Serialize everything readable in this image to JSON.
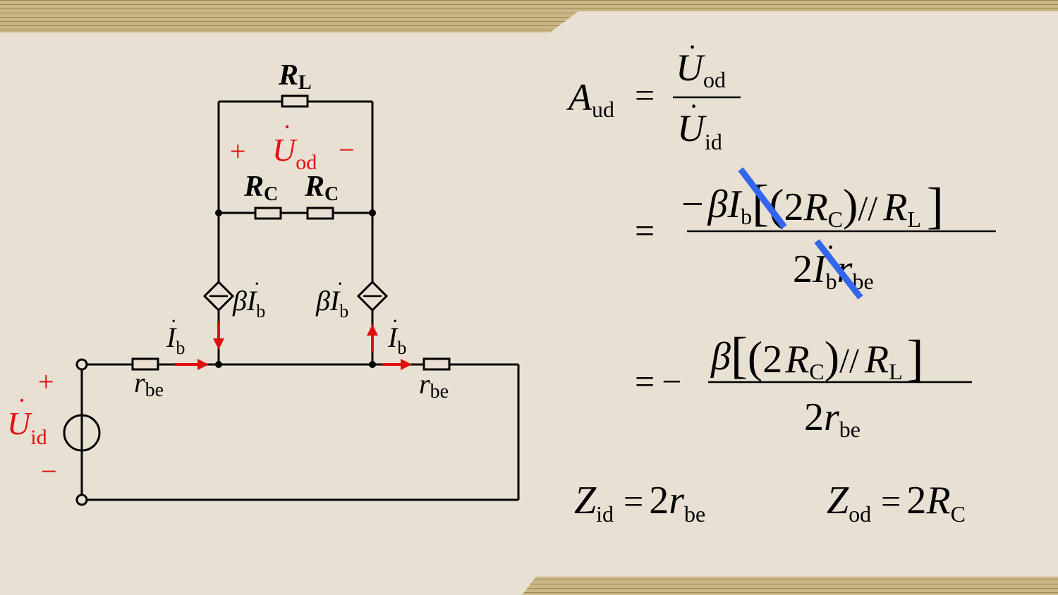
{
  "circuit": {
    "RL": {
      "sym": "R",
      "sub": "L"
    },
    "RC_left": {
      "sym": "R",
      "sub": "C"
    },
    "RC_right": {
      "sym": "R",
      "sub": "C"
    },
    "Uod": {
      "plus": "+",
      "minus": "−",
      "sym": "U",
      "dot": "·",
      "sub": "od"
    },
    "Uid": {
      "plus": "+",
      "minus": "−",
      "sym": "U",
      "dot": "·",
      "sub": "id"
    },
    "src_left": {
      "beta": "β",
      "sym": "I",
      "dot": "·",
      "sub": "b"
    },
    "src_right": {
      "beta": "β",
      "sym": "I",
      "dot": "·",
      "sub": "b"
    },
    "ib_left": {
      "sym": "I",
      "dot": "·",
      "sub": "b"
    },
    "ib_right": {
      "sym": "I",
      "dot": "·",
      "sub": "b"
    },
    "rbe_left": {
      "sym": "r",
      "sub": "be"
    },
    "rbe_right": {
      "sym": "r",
      "sub": "be"
    }
  },
  "equations": {
    "aud": {
      "sym": "A",
      "sub": "ud",
      "eq": "="
    },
    "frac1": {
      "num_sym": "U",
      "num_sub": "od",
      "den_sym": "U",
      "den_sub": "id",
      "dot": "·"
    },
    "line2": {
      "eq": "=",
      "num_minus": "−",
      "num_beta": "β",
      "num_I": "I",
      "num_Isub": "b",
      "num_lbrack": "[",
      "num_lparen": "(",
      "num_2": "2",
      "num_R": "R",
      "num_Rsub": "C",
      "num_rparen": ")",
      "num_par": "//",
      "num_RL": "R",
      "num_RLsub": "L",
      "num_rbrack": "]",
      "den_2": "2",
      "den_I": "I",
      "den_Isub": "b",
      "den_r": "r",
      "den_rsub": "be"
    },
    "line3": {
      "eq": "=",
      "minus": "−",
      "num_beta": "β",
      "num_lbrack": "[",
      "num_lparen": "(",
      "num_2": "2",
      "num_R": "R",
      "num_Rsub": "C",
      "num_rparen": ")",
      "num_par": "//",
      "num_RL": "R",
      "num_RLsub": "L",
      "num_rbrack": "]",
      "den_2": "2",
      "den_r": "r",
      "den_rsub": "be"
    },
    "zid": {
      "sym": "Z",
      "sub": "id",
      "eq": "=",
      "val": "2",
      "r": "r",
      "rsub": "be"
    },
    "zod": {
      "sym": "Z",
      "sub": "od",
      "eq": "=",
      "val": "2",
      "R": "R",
      "Rsub": "C"
    }
  },
  "colors": {
    "background": "#e8e0d2",
    "accent_red": "#e01010",
    "cancel_blue": "#3366ee",
    "stripe": "#b8a472"
  }
}
